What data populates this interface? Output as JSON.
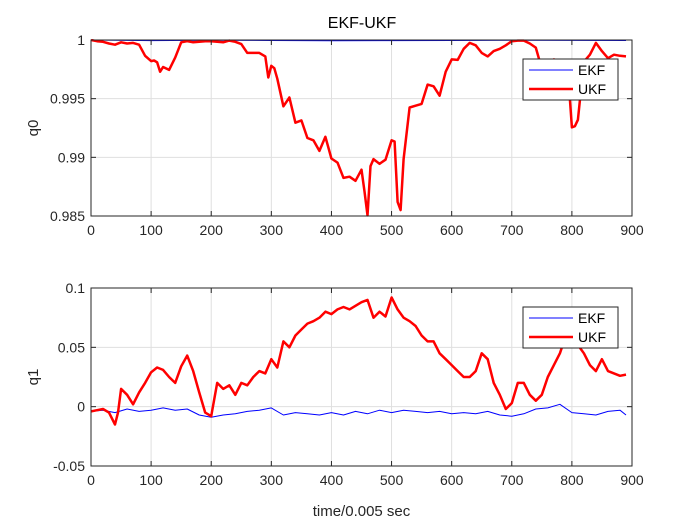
{
  "figure": {
    "title": "EKF-UKF"
  },
  "chart_data": [
    {
      "type": "line",
      "title": "EKF-UKF",
      "xlabel": "",
      "ylabel": "q0",
      "xlim": [
        0,
        900
      ],
      "ylim": [
        0.985,
        1.0
      ],
      "xticks": [
        0,
        100,
        200,
        300,
        400,
        500,
        600,
        700,
        800,
        900
      ],
      "yticks": [
        0.985,
        0.99,
        0.995,
        1
      ],
      "ytick_labels": [
        "0.985",
        "0.99",
        "0.995",
        "1"
      ],
      "grid": true,
      "legend": "top-right",
      "series": [
        {
          "name": "EKF",
          "color": "#0000ff",
          "x": [
            0,
            100,
            200,
            300,
            400,
            500,
            600,
            700,
            800,
            890
          ],
          "y": [
            1.0,
            0.99995,
            0.99998,
            0.99996,
            0.99993,
            0.99995,
            0.99996,
            0.99998,
            0.99997,
            0.99996
          ]
        },
        {
          "name": "UKF",
          "color": "#ff0000",
          "x": [
            0,
            10,
            20,
            30,
            40,
            50,
            60,
            70,
            80,
            90,
            100,
            105,
            110,
            115,
            120,
            130,
            140,
            150,
            160,
            170,
            180,
            190,
            200,
            210,
            220,
            230,
            240,
            250,
            260,
            270,
            280,
            290,
            295,
            300,
            305,
            310,
            320,
            330,
            340,
            350,
            360,
            370,
            380,
            390,
            400,
            410,
            420,
            430,
            440,
            450,
            455,
            460,
            465,
            470,
            480,
            490,
            500,
            505,
            510,
            515,
            520,
            530,
            540,
            550,
            560,
            570,
            580,
            590,
            600,
            610,
            620,
            630,
            640,
            650,
            660,
            670,
            680,
            690,
            700,
            710,
            720,
            730,
            740,
            750,
            760,
            770,
            780,
            790,
            795,
            800,
            805,
            810,
            820,
            830,
            840,
            850,
            860,
            870,
            880,
            890
          ],
          "y": [
            1.0,
            0.9999,
            0.99985,
            0.9997,
            0.9996,
            0.9998,
            0.9997,
            0.99975,
            0.9996,
            0.99865,
            0.9982,
            0.99825,
            0.9981,
            0.9973,
            0.9977,
            0.99745,
            0.9985,
            0.9998,
            0.9999,
            0.9998,
            0.99985,
            0.9999,
            0.9999,
            0.99985,
            0.9998,
            0.99995,
            0.99985,
            0.99965,
            0.9989,
            0.9989,
            0.9989,
            0.9986,
            0.9968,
            0.9978,
            0.9976,
            0.9967,
            0.99435,
            0.9951,
            0.99295,
            0.99315,
            0.99165,
            0.99145,
            0.99055,
            0.99175,
            0.9899,
            0.98955,
            0.98825,
            0.98835,
            0.988,
            0.98895,
            0.9871,
            0.98505,
            0.98925,
            0.98985,
            0.98945,
            0.9898,
            0.99145,
            0.99135,
            0.9862,
            0.9855,
            0.98985,
            0.99425,
            0.9944,
            0.99455,
            0.9962,
            0.99605,
            0.99525,
            0.9973,
            0.99835,
            0.9983,
            0.99925,
            0.99975,
            0.99955,
            0.9989,
            0.9986,
            0.99905,
            0.99925,
            0.99955,
            0.9999,
            0.99995,
            0.99995,
            0.9997,
            0.99935,
            0.99755,
            0.99815,
            0.99835,
            0.9973,
            0.9963,
            0.99615,
            0.99255,
            0.99265,
            0.9932,
            0.99815,
            0.99875,
            0.99975,
            0.99905,
            0.99845,
            0.99875,
            0.99865,
            0.9986
          ]
        }
      ]
    },
    {
      "type": "line",
      "title": "",
      "xlabel": "time/0.005 sec",
      "ylabel": "q1",
      "xlim": [
        0,
        900
      ],
      "ylim": [
        -0.05,
        0.1
      ],
      "xticks": [
        0,
        100,
        200,
        300,
        400,
        500,
        600,
        700,
        800,
        900
      ],
      "yticks": [
        -0.05,
        0,
        0.05,
        0.1
      ],
      "ytick_labels": [
        "-0.05",
        "0",
        "0.05",
        "0.1"
      ],
      "grid": true,
      "legend": "top-right",
      "series": [
        {
          "name": "EKF",
          "color": "#0000ff",
          "x": [
            0,
            20,
            40,
            60,
            80,
            100,
            120,
            140,
            160,
            180,
            200,
            220,
            240,
            260,
            280,
            300,
            320,
            340,
            360,
            380,
            400,
            420,
            440,
            460,
            480,
            500,
            520,
            540,
            560,
            580,
            600,
            620,
            640,
            660,
            680,
            700,
            720,
            740,
            760,
            780,
            800,
            820,
            840,
            860,
            880,
            890
          ],
          "y": [
            -0.004,
            -0.003,
            -0.005,
            -0.002,
            -0.004,
            -0.003,
            -0.001,
            -0.003,
            -0.002,
            -0.007,
            -0.009,
            -0.007,
            -0.006,
            -0.004,
            -0.003,
            -0.001,
            -0.007,
            -0.005,
            -0.006,
            -0.007,
            -0.005,
            -0.007,
            -0.004,
            -0.006,
            -0.003,
            -0.005,
            -0.003,
            -0.004,
            -0.005,
            -0.004,
            -0.006,
            -0.005,
            -0.006,
            -0.004,
            -0.007,
            -0.008,
            -0.006,
            -0.002,
            -0.001,
            0.002,
            -0.005,
            -0.006,
            -0.007,
            -0.004,
            -0.003,
            -0.007
          ]
        },
        {
          "name": "UKF",
          "color": "#ff0000",
          "x": [
            0,
            10,
            20,
            30,
            40,
            45,
            50,
            60,
            70,
            80,
            90,
            100,
            110,
            120,
            130,
            140,
            150,
            160,
            170,
            180,
            190,
            200,
            210,
            220,
            230,
            240,
            250,
            260,
            270,
            280,
            290,
            300,
            310,
            320,
            330,
            340,
            350,
            360,
            370,
            380,
            390,
            400,
            410,
            420,
            430,
            440,
            450,
            460,
            470,
            480,
            490,
            500,
            510,
            520,
            530,
            540,
            550,
            560,
            570,
            580,
            590,
            600,
            610,
            620,
            630,
            640,
            650,
            660,
            670,
            680,
            690,
            700,
            710,
            720,
            730,
            740,
            750,
            760,
            770,
            780,
            790,
            800,
            810,
            820,
            830,
            840,
            850,
            860,
            870,
            880,
            890
          ],
          "y": [
            -0.004,
            -0.003,
            -0.002,
            -0.005,
            -0.015,
            -0.005,
            0.015,
            0.01,
            0.002,
            0.012,
            0.02,
            0.029,
            0.033,
            0.031,
            0.025,
            0.02,
            0.034,
            0.043,
            0.03,
            0.012,
            -0.005,
            -0.008,
            0.02,
            0.015,
            0.018,
            0.01,
            0.02,
            0.018,
            0.025,
            0.03,
            0.028,
            0.04,
            0.033,
            0.055,
            0.05,
            0.06,
            0.065,
            0.07,
            0.072,
            0.075,
            0.08,
            0.078,
            0.082,
            0.084,
            0.082,
            0.085,
            0.088,
            0.09,
            0.075,
            0.08,
            0.076,
            0.092,
            0.082,
            0.075,
            0.072,
            0.068,
            0.06,
            0.055,
            0.055,
            0.045,
            0.04,
            0.035,
            0.03,
            0.025,
            0.025,
            0.03,
            0.045,
            0.04,
            0.02,
            0.01,
            -0.002,
            0.003,
            0.02,
            0.02,
            0.01,
            0.005,
            0.01,
            0.025,
            0.035,
            0.045,
            0.06,
            0.065,
            0.052,
            0.045,
            0.035,
            0.03,
            0.04,
            0.03,
            0.028,
            0.026,
            0.027
          ]
        }
      ]
    }
  ]
}
